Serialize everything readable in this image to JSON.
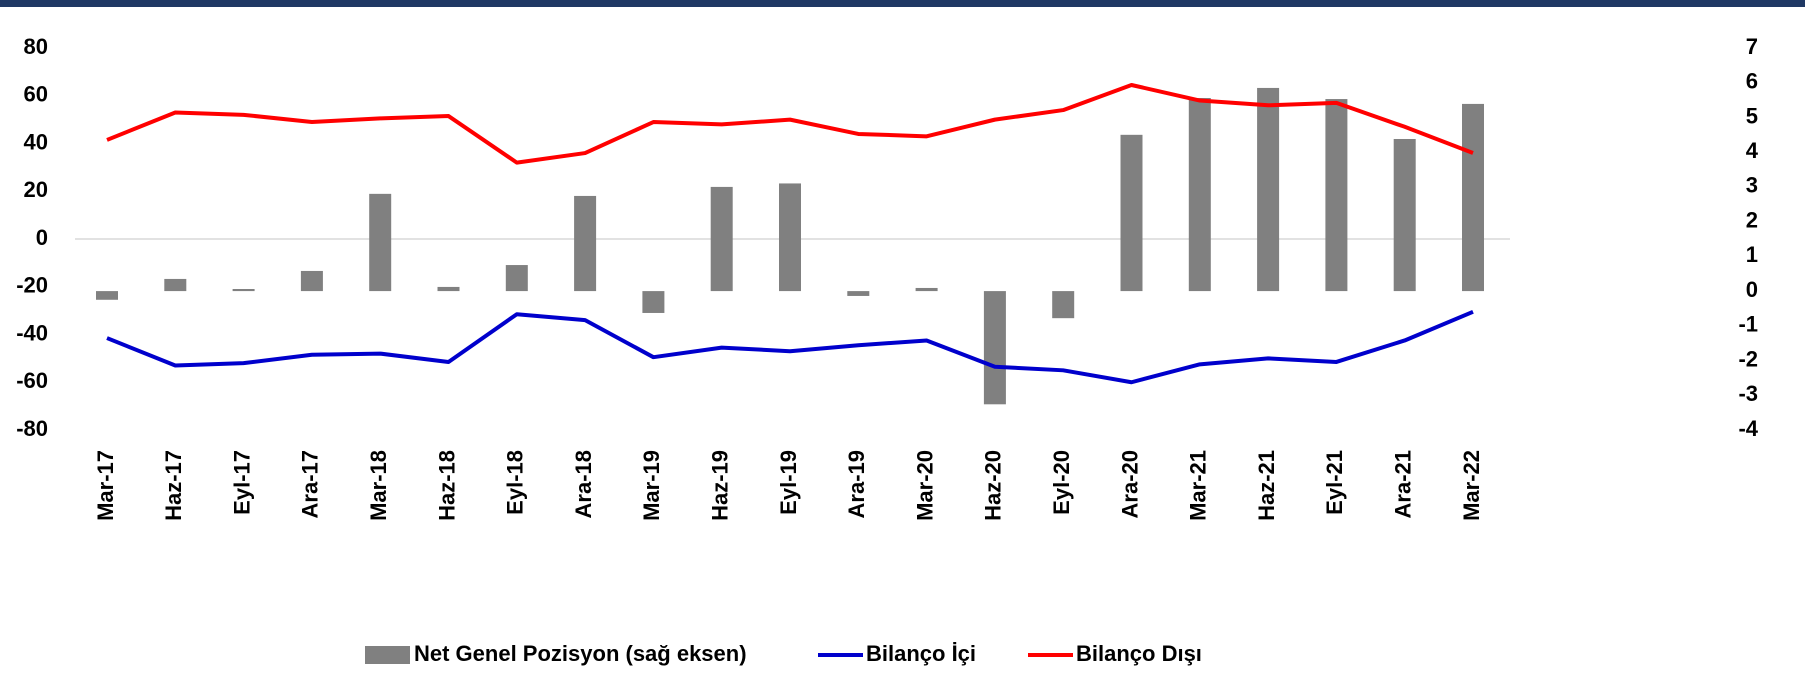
{
  "chart_data": {
    "type": "bar",
    "categories": [
      "Mar-17",
      "Haz-17",
      "Eyl-17",
      "Ara-17",
      "Mar-18",
      "Haz-18",
      "Eyl-18",
      "Ara-18",
      "Mar-19",
      "Haz-19",
      "Eyl-19",
      "Ara-19",
      "Mar-20",
      "Haz-20",
      "Eyl-20",
      "Ara-20",
      "Mar-21",
      "Haz-21",
      "Eyl-21",
      "Ara-21",
      "Mar-22"
    ],
    "series": [
      {
        "name": "Net Genel Pozisyon (sağ eksen)",
        "type": "bar",
        "axis": "y2",
        "color": "#808080",
        "values": [
          -0.25,
          0.35,
          0.06,
          0.58,
          2.8,
          0.12,
          0.75,
          2.74,
          -0.63,
          3.0,
          3.1,
          -0.14,
          0.09,
          -3.26,
          -0.78,
          4.5,
          5.56,
          5.85,
          5.53,
          4.38,
          5.39
        ]
      },
      {
        "name": "Bilanço İçi",
        "type": "line",
        "color": "#0000cc",
        "values": [
          -41.5,
          -53,
          -52,
          -48.5,
          -48,
          -51.5,
          -31.5,
          -34,
          -49.5,
          -45.5,
          -47,
          -44.5,
          -42.5,
          -53.5,
          -55,
          -60,
          -52.5,
          -50,
          -51.5,
          -42.5,
          -30.5
        ]
      },
      {
        "name": "Bilanço Dışı",
        "type": "line",
        "color": "#ff0000",
        "values": [
          41.5,
          53,
          52,
          49,
          50.5,
          51.5,
          32,
          36,
          49,
          48,
          50,
          44,
          43,
          50,
          54,
          64.5,
          58,
          56,
          57,
          47,
          36
        ]
      }
    ],
    "ylim": [
      -80,
      80
    ],
    "yticks": [
      80,
      60,
      40,
      20,
      0,
      -20,
      -40,
      -60,
      -80
    ],
    "y2lim": [
      -4,
      7
    ],
    "y2ticks": [
      7,
      6,
      5,
      4,
      3,
      2,
      1,
      0,
      -1,
      -2,
      -3,
      -4
    ],
    "grid": false,
    "legend": "bottom"
  }
}
